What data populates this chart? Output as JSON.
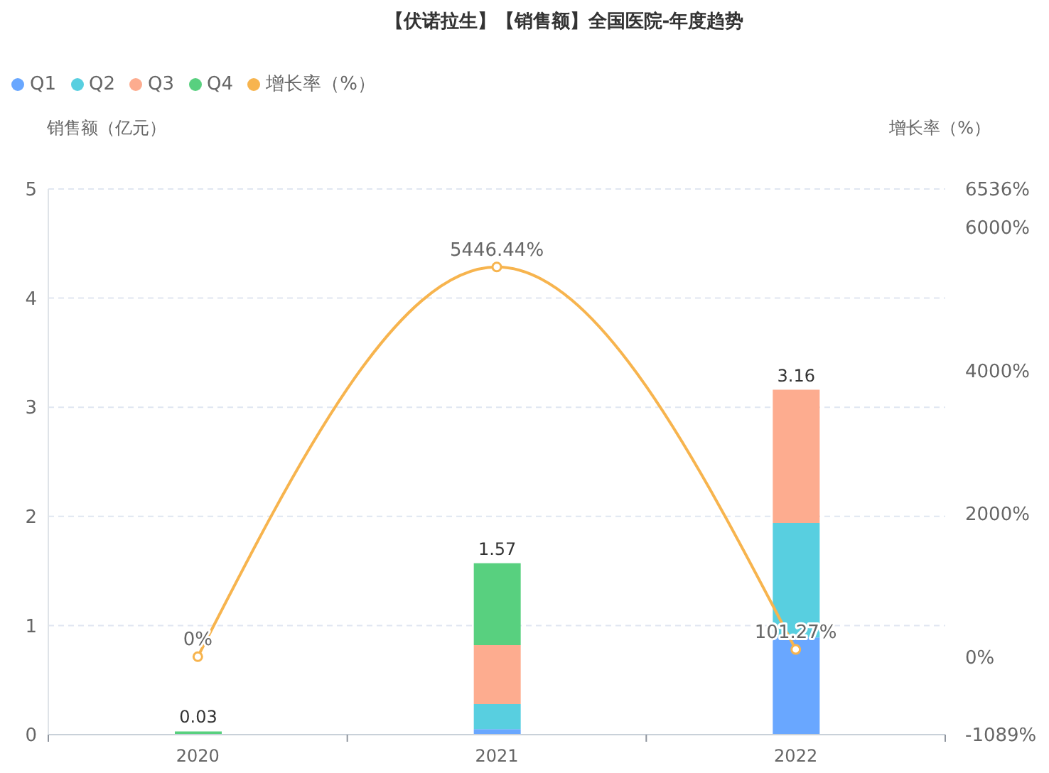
{
  "chart_data": {
    "type": "bar",
    "title": "【伏诺拉生】【销售额】全国医院-年度趋势",
    "ylabel": "销售额（亿元）",
    "y2label": "增长率（%）",
    "categories": [
      "2020",
      "2021",
      "2022"
    ],
    "stacked": true,
    "series": [
      {
        "name": "Q1",
        "color": "#69a7ff",
        "values": [
          null,
          0.05,
          0.89
        ]
      },
      {
        "name": "Q2",
        "color": "#58cfe0",
        "values": [
          null,
          0.23,
          1.05
        ]
      },
      {
        "name": "Q3",
        "color": "#fdac8f",
        "values": [
          null,
          0.54,
          1.22
        ]
      },
      {
        "name": "Q4",
        "color": "#58d07f",
        "values": [
          0.03,
          0.75,
          null
        ]
      },
      {
        "name": "增长率（%）",
        "type": "line",
        "axis": "y2",
        "color": "#f7b44e",
        "values": [
          0,
          5446.44,
          101.27
        ],
        "value_labels": [
          "0%",
          "5446.44%",
          "101.27%"
        ]
      }
    ],
    "totals": [
      "0.03",
      "1.57",
      "3.16"
    ],
    "ylim": [
      0,
      5
    ],
    "yticks": [
      0,
      1,
      2,
      3,
      4,
      5
    ],
    "y2lim": [
      -1089,
      6536
    ],
    "y2ticks": [
      {
        "value": -1089,
        "label": "-1089%"
      },
      {
        "value": 0,
        "label": "0%"
      },
      {
        "value": 2000,
        "label": "2000%"
      },
      {
        "value": 4000,
        "label": "4000%"
      },
      {
        "value": 6000,
        "label": "6000%"
      },
      {
        "value": 6536,
        "label": "6536%"
      }
    ],
    "grid": "y",
    "legend": "top left",
    "marker": "circle"
  }
}
